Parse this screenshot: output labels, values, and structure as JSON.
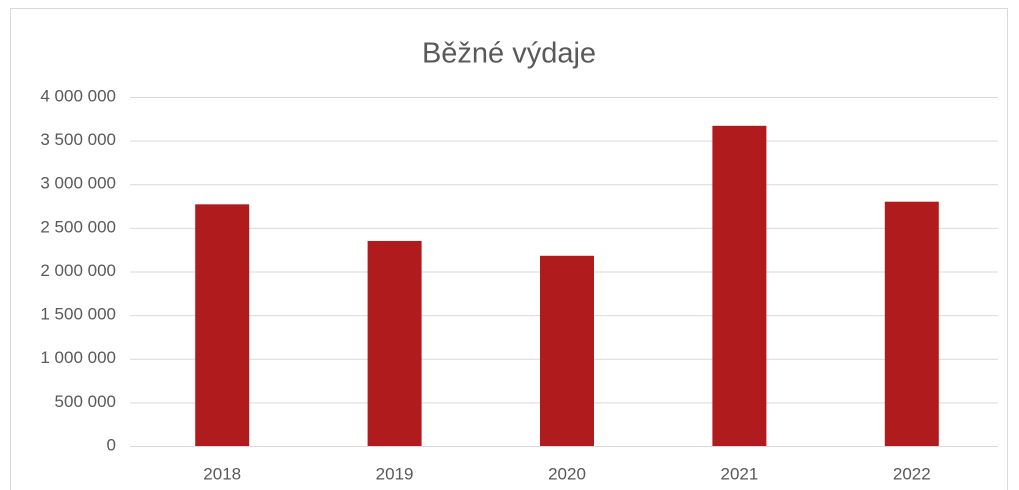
{
  "chart_data": {
    "type": "bar",
    "title": "Běžné výdaje",
    "categories": [
      "2018",
      "2019",
      "2020",
      "2021",
      "2022"
    ],
    "values": [
      2770000,
      2350000,
      2180000,
      3670000,
      2800000
    ],
    "color": "#b01c1e",
    "ylim": [
      0,
      4000000
    ],
    "yticks": [
      0,
      {
        "value": 500000,
        "label": "500 000"
      },
      {
        "value": 1000000,
        "label": "1 000 000"
      },
      {
        "value": 1500000,
        "label": "1 500 000"
      },
      {
        "value": 2000000,
        "label": "2 000 000"
      },
      {
        "value": 2500000,
        "label": "2 500 000"
      },
      {
        "value": 3000000,
        "label": "3 000 000"
      },
      {
        "value": 3500000,
        "label": "3 500 000"
      },
      {
        "value": 4000000,
        "label": "4 000 000"
      }
    ],
    "grid": true
  }
}
